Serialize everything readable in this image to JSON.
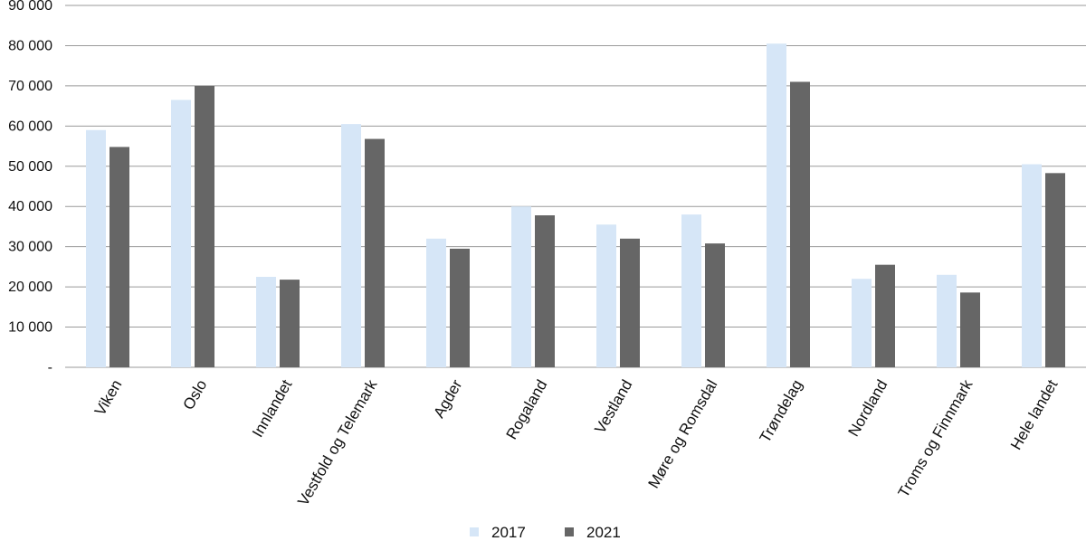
{
  "chart_data": {
    "type": "bar",
    "title": "",
    "xlabel": "",
    "ylabel": "",
    "categories": [
      "Viken",
      "Oslo",
      "Innlandet",
      "Vestfold og Telemark",
      "Agder",
      "Rogaland",
      "Vestland",
      "Møre og Romsdal",
      "Trøndelag",
      "Nordland",
      "Troms og Finnmark",
      "Hele landet"
    ],
    "series": [
      {
        "name": "2017",
        "color": "#d6e6f7",
        "values": [
          59000,
          66500,
          22500,
          60500,
          32000,
          40000,
          35500,
          38000,
          80500,
          22000,
          23000,
          50500
        ]
      },
      {
        "name": "2021",
        "color": "#666666",
        "values": [
          54800,
          70000,
          21800,
          56800,
          29500,
          37800,
          32000,
          30800,
          71000,
          25500,
          18600,
          48300
        ]
      }
    ],
    "ylim": [
      0,
      90000
    ],
    "yticks": [
      0,
      10000,
      20000,
      30000,
      40000,
      50000,
      60000,
      70000,
      80000,
      90000
    ],
    "ytick_labels": [
      "-",
      "10 000",
      "20 000",
      "30 000",
      "40 000",
      "50 000",
      "60 000",
      "70 000",
      "80 000",
      "90 000"
    ],
    "grid": true,
    "legend_position": "bottom"
  }
}
